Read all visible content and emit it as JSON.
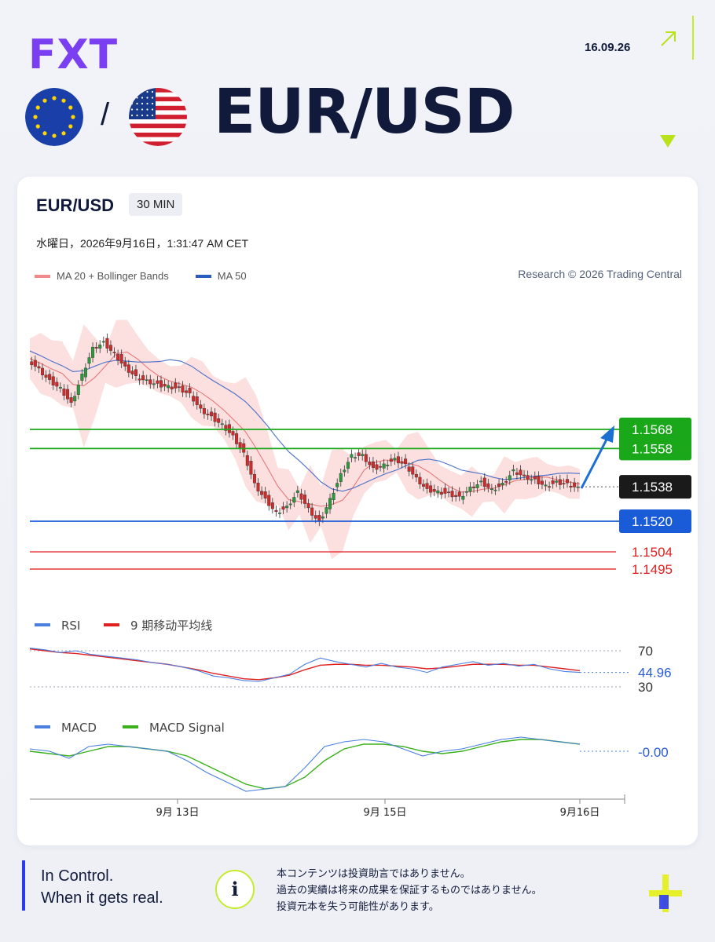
{
  "header": {
    "logo": "FXT",
    "date": "16.09.26",
    "pair": "EUR/USD",
    "slash": "/",
    "icons": [
      "eu-flag-icon",
      "us-flag-icon",
      "arrow-up-right-icon",
      "down-triangle-icon"
    ]
  },
  "card": {
    "title": "EUR/USD",
    "timeframe": "30 MIN",
    "timestamp": "水曜日，2026年9月16日，1:31:47 AM CET",
    "legend": [
      {
        "label": "MA 20 + Bollinger Bands",
        "color": "#f08b8b"
      },
      {
        "label": "MA 50",
        "color": "#2a5bbf"
      }
    ],
    "research": "Research © 2026 Trading Central"
  },
  "chart_data": [
    {
      "type": "candlestick",
      "title": "",
      "x_ticks": [
        "9月 13日",
        "9月 15日",
        "9月16日"
      ],
      "levels": [
        {
          "value": 1.1568,
          "label": "1.1568",
          "kind": "resistance",
          "color": "#1aa81a"
        },
        {
          "value": 1.1558,
          "label": "1.1558",
          "kind": "resistance",
          "color": "#1aa81a"
        },
        {
          "value": 1.1538,
          "label": "1.1538",
          "kind": "current",
          "color": "#1a1a1a"
        },
        {
          "value": 1.152,
          "label": "1.1520",
          "kind": "pivot",
          "color": "#1a5bd8"
        },
        {
          "value": 1.1504,
          "label": "1.1504",
          "kind": "support",
          "color": "#e02020"
        },
        {
          "value": 1.1495,
          "label": "1.1495",
          "kind": "support",
          "color": "#e02020"
        }
      ],
      "close_path": [
        1.1605,
        1.16,
        1.1594,
        1.159,
        1.1582,
        1.1597,
        1.1611,
        1.1614,
        1.1608,
        1.1601,
        1.1596,
        1.1594,
        1.1592,
        1.1591,
        1.159,
        1.1587,
        1.1579,
        1.1575,
        1.1571,
        1.1565,
        1.1556,
        1.154,
        1.1532,
        1.1525,
        1.1528,
        1.1536,
        1.1527,
        1.152,
        1.1532,
        1.1545,
        1.1555,
        1.1555,
        1.1548,
        1.155,
        1.1553,
        1.155,
        1.1543,
        1.1537,
        1.1536,
        1.1535,
        1.1533,
        1.1538,
        1.1541,
        1.1537,
        1.154,
        1.1547,
        1.1544,
        1.1542,
        1.1539,
        1.1541,
        1.154,
        1.1538
      ]
    },
    {
      "type": "line",
      "title": "",
      "legend": [
        {
          "label": "RSI",
          "color": "#4a7fe0"
        },
        {
          "label": "9 期移动平均线",
          "color": "#e02020"
        }
      ],
      "levels": [
        "70",
        "30"
      ],
      "current_label": "44.96",
      "rsi": [
        73,
        71,
        68,
        70,
        66,
        64,
        62,
        60,
        57,
        55,
        52,
        48,
        42,
        40,
        37,
        36,
        40,
        44,
        55,
        62,
        58,
        55,
        52,
        56,
        52,
        50,
        46,
        52,
        55,
        58,
        54,
        56,
        53,
        55,
        50,
        47,
        46
      ],
      "ma9": [
        72,
        70,
        68,
        67,
        65,
        63,
        61,
        59,
        57,
        55,
        52,
        49,
        45,
        42,
        39,
        38,
        40,
        43,
        49,
        54,
        55,
        55,
        54,
        54,
        53,
        52,
        50,
        51,
        53,
        55,
        55,
        55,
        54,
        54,
        52,
        50,
        48
      ]
    },
    {
      "type": "line",
      "title": "",
      "legend": [
        {
          "label": "MACD",
          "color": "#4a7fe0"
        },
        {
          "label": "MACD Signal",
          "color": "#3ab01a"
        }
      ],
      "current_label": "-0.00",
      "macd": [
        0.2,
        0.1,
        -0.2,
        0.3,
        0.4,
        0.3,
        0.2,
        0.1,
        -0.3,
        -0.8,
        -1.2,
        -1.6,
        -1.5,
        -1.4,
        -0.6,
        0.3,
        0.5,
        0.6,
        0.5,
        0.2,
        -0.1,
        0.1,
        0.2,
        0.4,
        0.6,
        0.7,
        0.6,
        0.5,
        0.4
      ],
      "signal": [
        0.1,
        0.0,
        -0.1,
        0.1,
        0.3,
        0.3,
        0.2,
        0.1,
        -0.1,
        -0.5,
        -0.9,
        -1.3,
        -1.5,
        -1.4,
        -1.0,
        -0.3,
        0.2,
        0.4,
        0.4,
        0.3,
        0.1,
        0.0,
        0.1,
        0.3,
        0.5,
        0.6,
        0.6,
        0.5,
        0.4
      ]
    }
  ],
  "footer": {
    "tagline_line1": "In Control.",
    "tagline_line2": "When it gets real.",
    "info_symbol": "i",
    "disclaimer_line1": "本コンテンツは投資助言ではありません。",
    "disclaimer_line2": "過去の実績は将来の成果を保証するものではありません。",
    "disclaimer_line3": "投資元本を失う可能性があります。",
    "icons": [
      "info-icon",
      "plus-icon"
    ]
  }
}
